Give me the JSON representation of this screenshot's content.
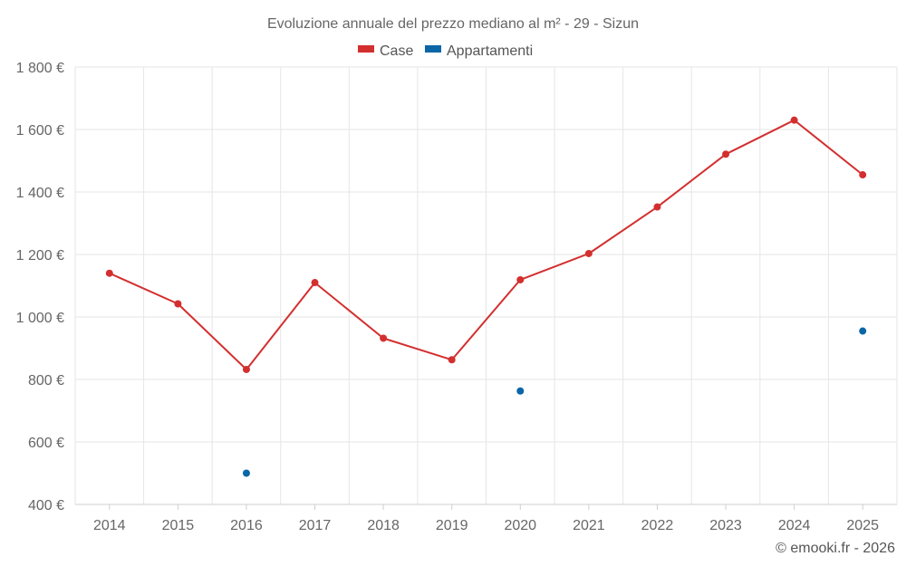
{
  "chart_data": {
    "type": "line",
    "title": "Evoluzione annuale del prezzo mediano al m² - 29 - Sizun",
    "categories": [
      "2014",
      "2015",
      "2016",
      "2017",
      "2018",
      "2019",
      "2020",
      "2021",
      "2022",
      "2023",
      "2024",
      "2025"
    ],
    "series": [
      {
        "name": "Case",
        "color": "#d32f2f",
        "values": [
          1140,
          1042,
          832,
          1110,
          932,
          863,
          1119,
          1203,
          1352,
          1521,
          1630,
          1455
        ]
      },
      {
        "name": "Appartamenti",
        "color": "#0b66a6",
        "values": [
          null,
          null,
          500,
          null,
          null,
          null,
          763,
          null,
          null,
          null,
          null,
          955
        ]
      }
    ],
    "yticks": [
      400,
      600,
      800,
      1000,
      1200,
      1400,
      1600,
      1800
    ],
    "ytick_labels": [
      "400 €",
      "600 €",
      "800 €",
      "1 000 €",
      "1 200 €",
      "1 400 €",
      "1 600 €",
      "1 800 €"
    ],
    "ylim": [
      400,
      1800
    ],
    "xlabel": "",
    "ylabel": "",
    "legend_position": "top-center",
    "grid": true
  },
  "credit": "© emooki.fr - 2026"
}
